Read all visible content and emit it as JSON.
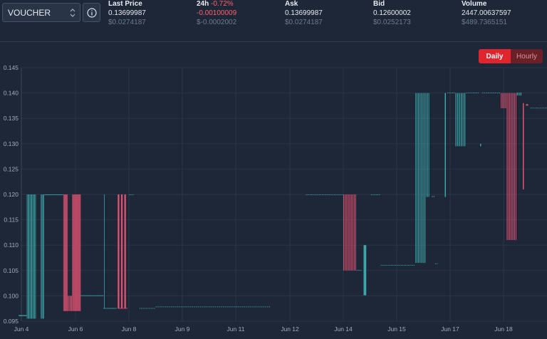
{
  "pair": {
    "value": "VOUCHER"
  },
  "stats": {
    "last_price": {
      "label": "Last Price",
      "value": "0.13699987",
      "usd": "$0.0274187"
    },
    "change_24h": {
      "label": "24h",
      "pct": "-0.72%",
      "value": "-0.00100009",
      "usd": "$-0.0002002"
    },
    "ask": {
      "label": "Ask",
      "value": "0.13699987",
      "usd": "$0.0274187"
    },
    "bid": {
      "label": "Bid",
      "value": "0.12600002",
      "usd": "$0.0252173"
    },
    "volume": {
      "label": "Volume",
      "value": "2447.00637597",
      "usd": "$489.7365151"
    }
  },
  "timeframe": {
    "daily": "Daily",
    "hourly": "Hourly",
    "selected": "Daily"
  },
  "colors": {
    "up": "#3aa6a6",
    "down": "#e05270",
    "grid": "#2b3548",
    "active": "#e0252f"
  },
  "icons": {
    "pair_select": "chevron-updown-icon",
    "info": "info-icon"
  },
  "chart_data": {
    "type": "candlestick",
    "ylim": [
      0.095,
      0.145
    ],
    "xlim": [
      -0.15,
      14.8
    ],
    "yticks": [
      "0.095",
      "0.100",
      "0.105",
      "0.110",
      "0.115",
      "0.120",
      "0.125",
      "0.130",
      "0.135",
      "0.140",
      "0.145"
    ],
    "xticks": [
      {
        "label": "Jun 4",
        "x": 0
      },
      {
        "label": "Jun 6",
        "x": 2
      },
      {
        "label": "Jun 8",
        "x": 4
      },
      {
        "label": "Jun 9",
        "x": 5
      },
      {
        "label": "Jun 11",
        "x": 6
      },
      {
        "label": "Jun 12",
        "x": 7
      },
      {
        "label": "Jun 14",
        "x": 8
      },
      {
        "label": "Jun 15",
        "x": 9
      },
      {
        "label": "Jun 17",
        "x": 10
      },
      {
        "label": "Jun 18",
        "x": 11
      }
    ],
    "segments": [
      {
        "x0": -0.1,
        "x1": 0.2,
        "y0": 0.096,
        "y1": 0.0962,
        "n": 15,
        "dir": "up"
      },
      {
        "x0": 0.2,
        "x1": 0.55,
        "y0": 0.0955,
        "y1": 0.12,
        "n": 10,
        "dir": "up"
      },
      {
        "x0": 0.72,
        "x1": 0.85,
        "y0": 0.0955,
        "y1": 0.12,
        "n": 4,
        "dir": "up"
      },
      {
        "x0": 0.85,
        "x1": 1.55,
        "y0": 0.1199,
        "y1": 0.12,
        "n": 28,
        "dir": "up"
      },
      {
        "x0": 1.55,
        "x1": 1.72,
        "y0": 0.097,
        "y1": 0.12,
        "n": 6,
        "dir": "down"
      },
      {
        "x0": 1.72,
        "x1": 1.88,
        "y0": 0.097,
        "y1": 0.1,
        "n": 5,
        "dir": "down"
      },
      {
        "x0": 1.88,
        "x1": 2.2,
        "y0": 0.097,
        "y1": 0.12,
        "n": 12,
        "dir": "down"
      },
      {
        "x0": 2.2,
        "x1": 3.05,
        "y0": 0.1,
        "y1": 0.1001,
        "n": 34,
        "dir": "up"
      },
      {
        "x0": 3.05,
        "x1": 3.55,
        "y0": 0.0975,
        "y1": 0.0976,
        "n": 20,
        "dir": "up"
      },
      {
        "x0": 3.07,
        "x1": 3.1,
        "y0": 0.0975,
        "y1": 0.12,
        "n": 1,
        "dir": "up"
      },
      {
        "x0": 3.58,
        "x1": 3.95,
        "y0": 0.0975,
        "y1": 0.12,
        "n": 3,
        "dir": "down"
      },
      {
        "x0": 3.6,
        "x1": 3.95,
        "y0": 0.0975,
        "y1": 0.0976,
        "n": 12,
        "dir": "down"
      },
      {
        "x0": 4.0,
        "x1": 4.1,
        "y0": 0.1199,
        "y1": 0.12,
        "n": 4,
        "dir": "up"
      },
      {
        "x0": 4.2,
        "x1": 4.5,
        "y0": 0.0975,
        "y1": 0.0976,
        "n": 10,
        "dir": "up"
      },
      {
        "x0": 4.5,
        "x1": 6.65,
        "y0": 0.0978,
        "y1": 0.0979,
        "n": 60,
        "dir": "up"
      },
      {
        "x0": 7.3,
        "x1": 8.0,
        "y0": 0.1199,
        "y1": 0.12,
        "n": 28,
        "dir": "up"
      },
      {
        "x0": 8.0,
        "x1": 8.25,
        "y0": 0.105,
        "y1": 0.12,
        "n": 10,
        "dir": "down"
      },
      {
        "x0": 8.25,
        "x1": 8.35,
        "y0": 0.105,
        "y1": 0.1051,
        "n": 4,
        "dir": "up"
      },
      {
        "x0": 8.38,
        "x1": 8.48,
        "y0": 0.11,
        "y1": 0.1001,
        "n": 1,
        "dir": "up"
      },
      {
        "x0": 8.52,
        "x1": 8.7,
        "y0": 0.1199,
        "y1": 0.12,
        "n": 6,
        "dir": "up"
      },
      {
        "x0": 8.7,
        "x1": 9.35,
        "y0": 0.106,
        "y1": 0.1061,
        "n": 24,
        "dir": "up"
      },
      {
        "x0": 9.35,
        "x1": 9.55,
        "y0": 0.1065,
        "y1": 0.14,
        "n": 8,
        "dir": "up"
      },
      {
        "x0": 9.55,
        "x1": 9.62,
        "y0": 0.1195,
        "y1": 0.14,
        "n": 3,
        "dir": "up"
      },
      {
        "x0": 9.66,
        "x1": 9.72,
        "y0": 0.1195,
        "y1": 0.1197,
        "n": 2,
        "dir": "up"
      },
      {
        "x0": 9.72,
        "x1": 9.78,
        "y0": 0.1063,
        "y1": 0.1064,
        "n": 2,
        "dir": "up"
      },
      {
        "x0": 9.9,
        "x1": 9.94,
        "y0": 0.1195,
        "y1": 0.14,
        "n": 1,
        "dir": "up"
      },
      {
        "x0": 9.95,
        "x1": 10.1,
        "y0": 0.14,
        "y1": 0.1401,
        "n": 5,
        "dir": "up"
      },
      {
        "x0": 10.1,
        "x1": 10.3,
        "y0": 0.1295,
        "y1": 0.14,
        "n": 6,
        "dir": "up"
      },
      {
        "x0": 10.3,
        "x1": 10.55,
        "y0": 0.14,
        "y1": 0.1401,
        "n": 8,
        "dir": "up"
      },
      {
        "x0": 10.56,
        "x1": 10.6,
        "y0": 0.1295,
        "y1": 0.13,
        "n": 1,
        "dir": "up"
      },
      {
        "x0": 10.6,
        "x1": 10.95,
        "y0": 0.14,
        "y1": 0.1401,
        "n": 10,
        "dir": "up"
      },
      {
        "x0": 10.95,
        "x1": 11.06,
        "y0": 0.137,
        "y1": 0.14,
        "n": 4,
        "dir": "down"
      },
      {
        "x0": 11.06,
        "x1": 11.25,
        "y0": 0.111,
        "y1": 0.14,
        "n": 8,
        "dir": "down"
      },
      {
        "x0": 11.25,
        "x1": 11.35,
        "y0": 0.1395,
        "y1": 0.1401,
        "n": 3,
        "dir": "up"
      },
      {
        "x0": 11.36,
        "x1": 11.4,
        "y0": 0.121,
        "y1": 0.138,
        "n": 1,
        "dir": "down"
      },
      {
        "x0": 11.42,
        "x1": 11.5,
        "y0": 0.1375,
        "y1": 0.1378,
        "n": 1,
        "dir": "down"
      },
      {
        "x0": 11.5,
        "x1": 12.25,
        "y0": 0.137,
        "y1": 0.1371,
        "n": 30,
        "dir": "up"
      }
    ]
  }
}
